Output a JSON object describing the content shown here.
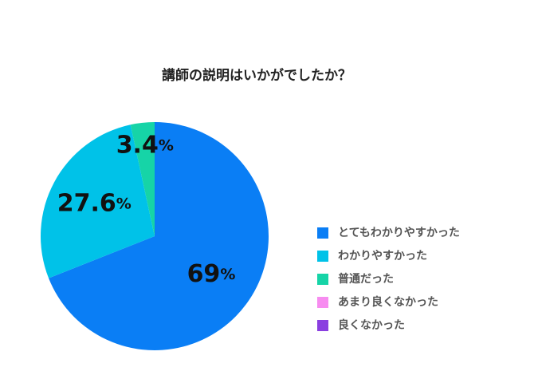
{
  "chart_data": {
    "type": "pie",
    "title": "講師の説明はいかがでしたか？",
    "categories": [
      "とてもわかりやすかった",
      "わかりやすかった",
      "普通だった",
      "あまり良くなかった",
      "良くなかった"
    ],
    "values": [
      69,
      27.6,
      3.4,
      0,
      0
    ],
    "value_labels": [
      "69%",
      "27.6%",
      "3.4%",
      null,
      null
    ],
    "colors": [
      "#0a7ef5",
      "#00c2e8",
      "#16d4a7",
      "#f78cf0",
      "#8a3fe0"
    ],
    "legend": "right"
  }
}
